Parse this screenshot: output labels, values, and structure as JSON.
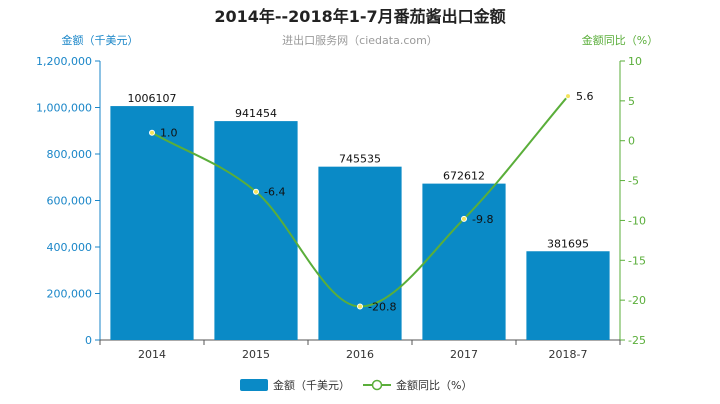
{
  "chart_data": {
    "type": "bar",
    "title": "2014年--2018年1-7月番茄酱出口金额",
    "subtitle": "进出口服务网（ciedata.com）",
    "categories": [
      "2014",
      "2015",
      "2016",
      "2017",
      "2018-7"
    ],
    "series": [
      {
        "name": "金额（千美元）",
        "type": "bar",
        "axis": "left",
        "values": [
          1006107,
          941454,
          745535,
          672612,
          381695
        ],
        "labels": [
          "1006107",
          "941454",
          "745535",
          "672612",
          "381695"
        ],
        "color": "#0a8ac6"
      },
      {
        "name": "金额同比（%）",
        "type": "line",
        "axis": "right",
        "values": [
          1.0,
          -6.4,
          -20.8,
          -9.8,
          5.6
        ],
        "labels": [
          "1.0",
          "-6.4",
          "-20.8",
          "-9.8",
          "5.6"
        ],
        "color": "#5aae3a"
      }
    ],
    "ylabel_left": "金额（千美元）",
    "ylabel_right": "金额同比（%）",
    "ylim_left": [
      0,
      1200000
    ],
    "yticks_left": [
      "0",
      "200,000",
      "400,000",
      "600,000",
      "800,000",
      "1,000,000",
      "1,200,000"
    ],
    "ylim_right": [
      -25,
      10
    ],
    "yticks_right": [
      "-25",
      "-20",
      "-15",
      "-10",
      "-5",
      "0",
      "5",
      "10"
    ],
    "grid": false,
    "legend_position": "bottom"
  }
}
